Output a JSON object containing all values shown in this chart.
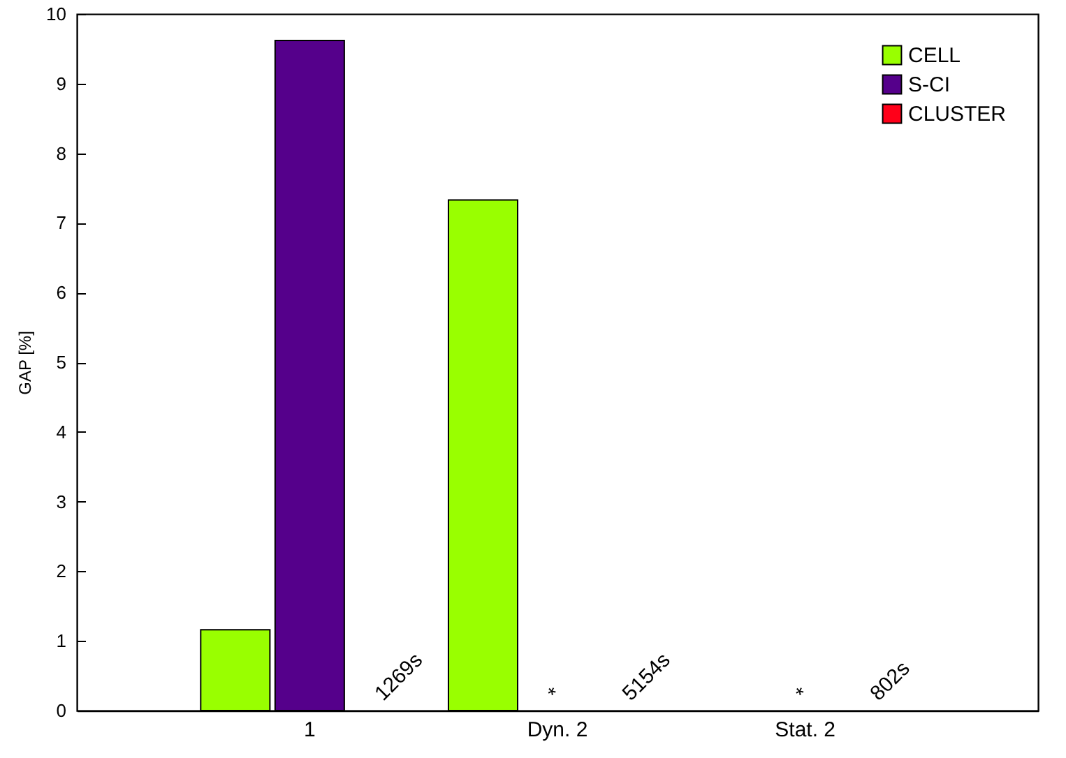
{
  "chart_data": {
    "type": "bar",
    "ylabel": "GAP [%]",
    "categories": [
      "1",
      "Dyn. 2",
      "Stat. 2"
    ],
    "ylim": [
      0,
      10
    ],
    "yticks": [
      0,
      1,
      2,
      3,
      4,
      5,
      6,
      7,
      8,
      9,
      10
    ],
    "legend": "top right",
    "series": [
      {
        "name": "CELL",
        "color": "#99ff00",
        "values": [
          1.16,
          7.33,
          0
        ]
      },
      {
        "name": "S-CI",
        "color": "#55008b",
        "values": [
          9.62,
          0,
          0
        ],
        "value_labels": [
          null,
          "*",
          "*"
        ]
      },
      {
        "name": "CLUSTER",
        "color": "#ff0019",
        "values": [
          0,
          0,
          0
        ]
      }
    ],
    "annotations": [
      {
        "text": "1269s",
        "x": "1",
        "y": 0
      },
      {
        "text": "5154s",
        "x": "Dyn. 2",
        "y": 0
      },
      {
        "text": "802s",
        "x": "Stat. 2",
        "y": 0
      }
    ]
  }
}
